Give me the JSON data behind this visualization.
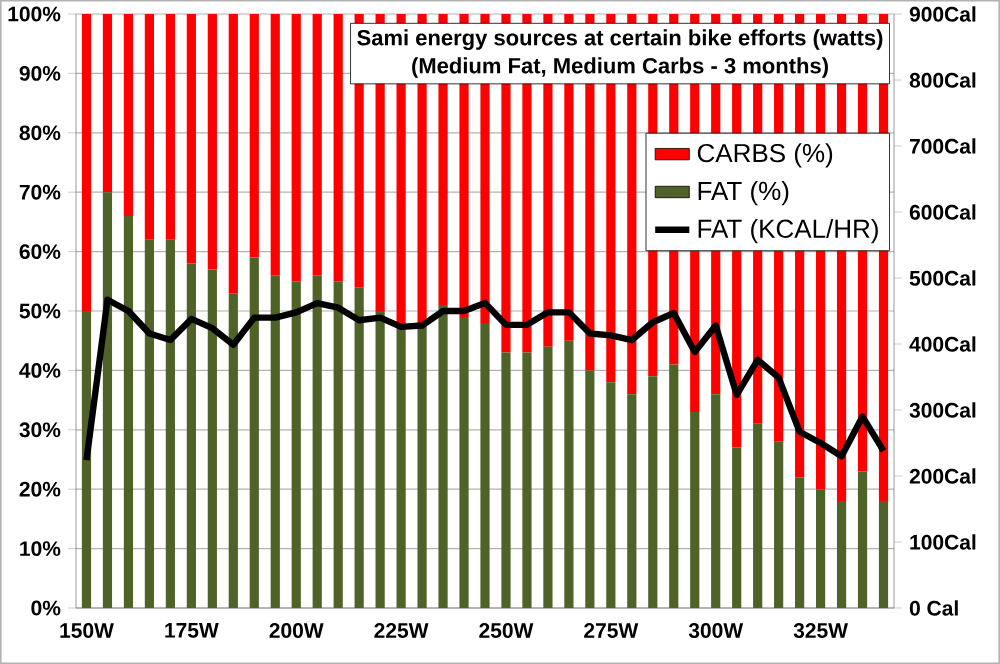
{
  "chart_data": {
    "type": "bar",
    "stacked": true,
    "title": "Sami energy sources at certain bike efforts (watts)",
    "subtitle": "(Medium Fat, Medium Carbs - 3 months)",
    "categories": [
      "150W",
      null,
      null,
      null,
      null,
      "175W",
      null,
      null,
      null,
      null,
      "200W",
      null,
      null,
      null,
      null,
      "225W",
      null,
      null,
      null,
      null,
      "250W",
      null,
      null,
      null,
      null,
      "275W",
      null,
      null,
      null,
      null,
      "300W",
      null,
      null,
      null,
      null,
      "325W",
      null,
      null,
      null
    ],
    "series": [
      {
        "name": "FAT (%)",
        "color": "#4f6228",
        "values": [
          50,
          70,
          66,
          62,
          62,
          58,
          57,
          53,
          59,
          56,
          55,
          56,
          55,
          54,
          50,
          48,
          48,
          51,
          49,
          48,
          43,
          43,
          44,
          45,
          40,
          38,
          36,
          39,
          41,
          33,
          36,
          27,
          31,
          28,
          22,
          20,
          18,
          23,
          18
        ]
      },
      {
        "name": "CARBS (%)",
        "color": "#ff0000",
        "values": [
          50,
          30,
          34,
          38,
          38,
          42,
          43,
          47,
          41,
          44,
          45,
          44,
          45,
          46,
          50,
          52,
          52,
          49,
          51,
          52,
          57,
          57,
          56,
          55,
          60,
          62,
          64,
          61,
          59,
          67,
          64,
          73,
          69,
          72,
          78,
          80,
          82,
          77,
          82
        ]
      },
      {
        "name": "FAT (KCAL/HR)",
        "type": "line",
        "axis": "y2",
        "color": "#000000",
        "values": [
          224,
          467,
          450,
          416,
          406,
          438,
          424,
          399,
          440,
          440,
          448,
          462,
          455,
          436,
          440,
          426,
          428,
          450,
          450,
          462,
          429,
          429,
          448,
          448,
          416,
          413,
          406,
          433,
          447,
          388,
          428,
          323,
          376,
          349,
          267,
          250,
          230,
          290,
          238
        ]
      }
    ],
    "ylim": [
      0,
      100
    ],
    "yticks": [
      {
        "value": 0,
        "label": "0%"
      },
      {
        "value": 10,
        "label": "10%"
      },
      {
        "value": 20,
        "label": "20%"
      },
      {
        "value": 30,
        "label": "30%"
      },
      {
        "value": 40,
        "label": "40%"
      },
      {
        "value": 50,
        "label": "50%"
      },
      {
        "value": 60,
        "label": "60%"
      },
      {
        "value": 70,
        "label": "70%"
      },
      {
        "value": 80,
        "label": "80%"
      },
      {
        "value": 90,
        "label": "90%"
      },
      {
        "value": 100,
        "label": "100%"
      }
    ],
    "y2lim": [
      0,
      900
    ],
    "y2ticks": [
      {
        "value": 0,
        "label": "0  Cal"
      },
      {
        "value": 100,
        "label": "100Cal"
      },
      {
        "value": 200,
        "label": "200Cal"
      },
      {
        "value": 300,
        "label": "300Cal"
      },
      {
        "value": 400,
        "label": "400Cal"
      },
      {
        "value": 500,
        "label": "500Cal"
      },
      {
        "value": 600,
        "label": "600Cal"
      },
      {
        "value": 700,
        "label": "700Cal"
      },
      {
        "value": 800,
        "label": "800Cal"
      },
      {
        "value": 900,
        "label": "900Cal"
      }
    ],
    "grid": "y",
    "legend": "top right"
  }
}
